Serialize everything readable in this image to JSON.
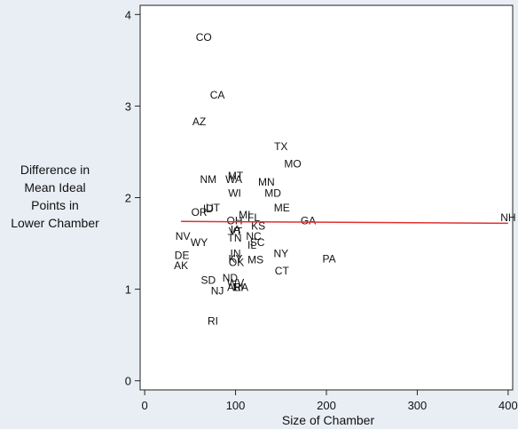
{
  "chart_data": {
    "type": "scatter",
    "title": "",
    "xlabel": "Size of Chamber",
    "ylabel_lines": [
      "Difference in",
      "Mean Ideal",
      "Points in",
      "Lower Chamber"
    ],
    "xlim": [
      -5,
      405
    ],
    "ylim": [
      -0.1,
      4.1
    ],
    "x_ticks": [
      0,
      100,
      200,
      300,
      400
    ],
    "y_ticks": [
      0,
      1,
      2,
      3,
      4
    ],
    "points": [
      {
        "label": "CO",
        "x": 65,
        "y": 3.75
      },
      {
        "label": "CA",
        "x": 80,
        "y": 3.12
      },
      {
        "label": "AZ",
        "x": 60,
        "y": 2.83
      },
      {
        "label": "TX",
        "x": 150,
        "y": 2.56
      },
      {
        "label": "MO",
        "x": 163,
        "y": 2.37
      },
      {
        "label": "NM",
        "x": 70,
        "y": 2.2
      },
      {
        "label": "WA",
        "x": 98,
        "y": 2.2
      },
      {
        "label": "MT",
        "x": 100,
        "y": 2.24
      },
      {
        "label": "MN",
        "x": 134,
        "y": 2.17
      },
      {
        "label": "WI",
        "x": 99,
        "y": 2.05
      },
      {
        "label": "MD",
        "x": 141,
        "y": 2.05
      },
      {
        "label": "UT",
        "x": 75,
        "y": 1.89
      },
      {
        "label": "ID",
        "x": 70,
        "y": 1.88
      },
      {
        "label": "ME",
        "x": 151,
        "y": 1.89
      },
      {
        "label": "OR",
        "x": 60,
        "y": 1.84
      },
      {
        "label": "MI",
        "x": 110,
        "y": 1.81
      },
      {
        "label": "FL",
        "x": 120,
        "y": 1.78
      },
      {
        "label": "OH",
        "x": 99,
        "y": 1.75
      },
      {
        "label": "GA",
        "x": 180,
        "y": 1.75
      },
      {
        "label": "NH",
        "x": 400,
        "y": 1.78
      },
      {
        "label": "KS",
        "x": 125,
        "y": 1.69
      },
      {
        "label": "IA",
        "x": 100,
        "y": 1.65
      },
      {
        "label": "VT",
        "x": 100,
        "y": 1.63
      },
      {
        "label": "NV",
        "x": 42,
        "y": 1.58
      },
      {
        "label": "NC",
        "x": 120,
        "y": 1.58
      },
      {
        "label": "TN",
        "x": 99,
        "y": 1.56
      },
      {
        "label": "SC",
        "x": 124,
        "y": 1.51
      },
      {
        "label": "IL",
        "x": 118,
        "y": 1.48
      },
      {
        "label": "WY",
        "x": 60,
        "y": 1.51
      },
      {
        "label": "DE",
        "x": 41,
        "y": 1.37
      },
      {
        "label": "IN",
        "x": 100,
        "y": 1.39
      },
      {
        "label": "NY",
        "x": 150,
        "y": 1.39
      },
      {
        "label": "PA",
        "x": 203,
        "y": 1.33
      },
      {
        "label": "KY",
        "x": 100,
        "y": 1.33
      },
      {
        "label": "MS",
        "x": 122,
        "y": 1.32
      },
      {
        "label": "OK",
        "x": 101,
        "y": 1.29
      },
      {
        "label": "AK",
        "x": 40,
        "y": 1.26
      },
      {
        "label": "CT",
        "x": 151,
        "y": 1.2
      },
      {
        "label": "ND",
        "x": 94,
        "y": 1.12
      },
      {
        "label": "SD",
        "x": 70,
        "y": 1.1
      },
      {
        "label": "WV",
        "x": 100,
        "y": 1.07
      },
      {
        "label": "AL",
        "x": 98,
        "y": 1.02
      },
      {
        "label": "HI",
        "x": 103,
        "y": 1.02
      },
      {
        "label": "RA",
        "x": 106,
        "y": 1.02
      },
      {
        "label": "NJ",
        "x": 80,
        "y": 0.98
      },
      {
        "label": "RI",
        "x": 75,
        "y": 0.65
      }
    ],
    "fit_line": {
      "x": [
        40,
        400
      ],
      "y": [
        1.74,
        1.72
      ],
      "color": "#e03030"
    },
    "grid": false
  }
}
